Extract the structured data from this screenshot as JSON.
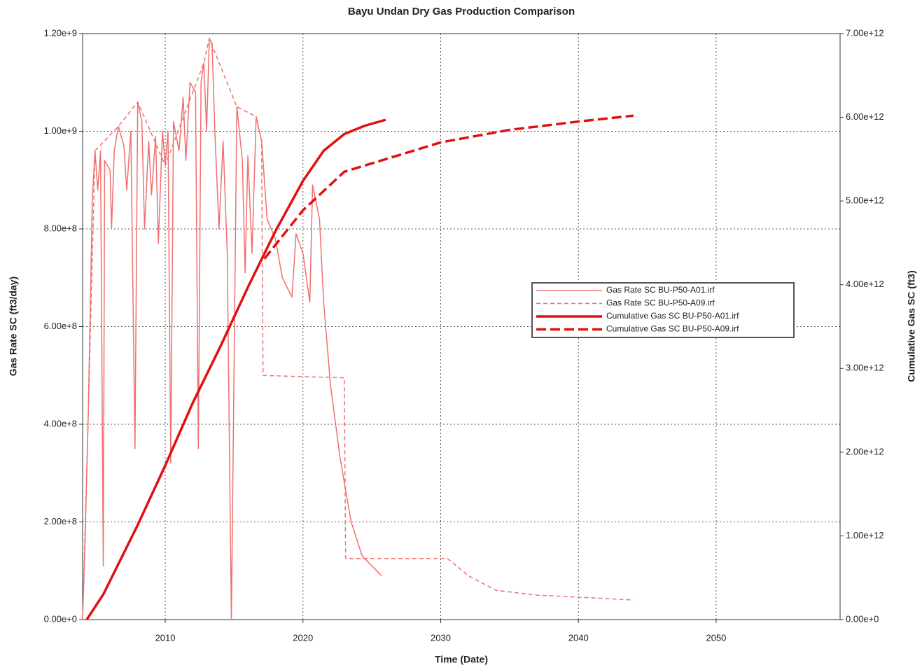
{
  "chart_data": {
    "type": "line",
    "title": "Bayu Undan Dry Gas Production Comparison",
    "x_label": "Time (Date)",
    "y_label": "Gas Rate SC (ft3/day)",
    "y2_label": "Cumulative Gas SC (ft3)",
    "xlim": [
      2004,
      2059
    ],
    "xticks": [
      2010,
      2020,
      2030,
      2040,
      2050
    ],
    "ylim": [
      0,
      1200000000.0
    ],
    "yticks": [
      {
        "value": 0,
        "label": "0.00e+0"
      },
      {
        "value": 200000000.0,
        "label": "2.00e+8"
      },
      {
        "value": 400000000.0,
        "label": "4.00e+8"
      },
      {
        "value": 600000000.0,
        "label": "6.00e+8"
      },
      {
        "value": 800000000.0,
        "label": "8.00e+8"
      },
      {
        "value": 1000000000.0,
        "label": "1.00e+9"
      },
      {
        "value": 1200000000.0,
        "label": "1.20e+9"
      }
    ],
    "y2lim": [
      0,
      7000000000000.0
    ],
    "y2ticks": [
      {
        "value": 0,
        "label": "0.00e+0"
      },
      {
        "value": 1000000000000.0,
        "label": "1.00e+12"
      },
      {
        "value": 2000000000000.0,
        "label": "2.00e+12"
      },
      {
        "value": 3000000000000.0,
        "label": "3.00e+12"
      },
      {
        "value": 4000000000000.0,
        "label": "4.00e+12"
      },
      {
        "value": 5000000000000.0,
        "label": "5.00e+12"
      },
      {
        "value": 6000000000000.0,
        "label": "6.00e+12"
      },
      {
        "value": 7000000000000.0,
        "label": "7.00e+12"
      }
    ],
    "grid": true,
    "legend": "center right",
    "series": [
      {
        "name": "Gas Rate SC BU-P50-A01.irf",
        "color": "#f07070",
        "line_style": "solid",
        "line_width": 1.5,
        "x": [
          2004.0,
          2004.2,
          2004.4,
          2004.6,
          2004.7,
          2004.9,
          2005.1,
          2005.3,
          2005.5,
          2005.6,
          2006.0,
          2006.1,
          2006.3,
          2006.6,
          2007.0,
          2007.2,
          2007.5,
          2007.8,
          2008.0,
          2008.3,
          2008.5,
          2008.8,
          2009.0,
          2009.3,
          2009.5,
          2009.8,
          2010.0,
          2010.2,
          2010.4,
          2010.6,
          2011.0,
          2011.3,
          2011.5,
          2011.8,
          2012.2,
          2012.4,
          2012.6,
          2012.8,
          2013.0,
          2013.2,
          2013.4,
          2013.6,
          2013.9,
          2014.2,
          2014.5,
          2014.8,
          2015.2,
          2015.6,
          2015.8,
          2016.0,
          2016.3,
          2016.6,
          2017.0,
          2017.4,
          2018.0,
          2018.5,
          2019.2,
          2019.5,
          2020.0,
          2020.5,
          2020.7,
          2021.2,
          2021.5,
          2022.0,
          2022.7,
          2023.5,
          2024.3,
          2025.0,
          2025.7
        ],
        "values": [
          0,
          180000000.0,
          410000000.0,
          700000000.0,
          860000000.0,
          960000000.0,
          880000000.0,
          960000000.0,
          110000000.0,
          940000000.0,
          920000000.0,
          800000000.0,
          960000000.0,
          1010000000.0,
          970000000.0,
          880000000.0,
          1000000000.0,
          350000000.0,
          1060000000.0,
          1020000000.0,
          800000000.0,
          980000000.0,
          870000000.0,
          990000000.0,
          770000000.0,
          1000000000.0,
          930000000.0,
          1000000000.0,
          320000000.0,
          1020000000.0,
          960000000.0,
          1070000000.0,
          940000000.0,
          1100000000.0,
          1080000000.0,
          350000000.0,
          1100000000.0,
          1140000000.0,
          1000000000.0,
          1190000000.0,
          1180000000.0,
          1000000000.0,
          800000000.0,
          980000000.0,
          750000000.0,
          0,
          1050000000.0,
          940000000.0,
          710000000.0,
          950000000.0,
          750000000.0,
          1030000000.0,
          980000000.0,
          820000000.0,
          780000000.0,
          700000000.0,
          660000000.0,
          790000000.0,
          750000000.0,
          650000000.0,
          890000000.0,
          820000000.0,
          650000000.0,
          480000000.0,
          330000000.0,
          200000000.0,
          130000000.0,
          110000000.0,
          90000000.0
        ]
      },
      {
        "name": "Gas Rate SC BU-P50-A09.irf",
        "color": "#f07070",
        "line_style": "dashed",
        "line_width": 1.5,
        "x": [
          2004.0,
          2004.4,
          2004.9,
          2006.6,
          2008.0,
          2010.0,
          2012.8,
          2013.2,
          2015.2,
          2016.6,
          2017.0,
          2017.1,
          2023.0,
          2023.1,
          2030.5,
          2032.0,
          2034.0,
          2037.0,
          2040.0,
          2044.0
        ],
        "values": [
          0,
          410000000.0,
          960000000.0,
          1010000000.0,
          1060000000.0,
          930000000.0,
          1140000000.0,
          1190000000.0,
          1050000000.0,
          1030000000.0,
          980000000.0,
          500000000.0,
          495000000.0,
          125000000.0,
          125000000.0,
          90000000.0,
          60000000.0,
          50000000.0,
          46000000.0,
          40000000.0
        ]
      },
      {
        "name": "Cumulative Gas SC BU-P50-A01.irf",
        "color": "#e01010",
        "line_style": "solid",
        "line_width": 3.5,
        "axis": "y2",
        "x": [
          2004.3,
          2005.5,
          2008.0,
          2010.0,
          2012.0,
          2014.0,
          2016.0,
          2018.0,
          2020.0,
          2021.5,
          2023.0,
          2024.5,
          2026.0
        ],
        "values": [
          0,
          300000000000.0,
          1130000000000.0,
          1840000000000.0,
          2590000000000.0,
          3260000000000.0,
          3970000000000.0,
          4640000000000.0,
          5240000000000.0,
          5600000000000.0,
          5800000000000.0,
          5900000000000.0,
          5970000000000.0
        ]
      },
      {
        "name": "Cumulative Gas SC BU-P50-A09.irf",
        "color": "#e01010",
        "line_style": "dashed",
        "line_width": 3.5,
        "axis": "y2",
        "x": [
          2017.2,
          2020.0,
          2023.0,
          2027.0,
          2030.0,
          2035.0,
          2040.0,
          2044.0
        ],
        "values": [
          4310000000000.0,
          4890000000000.0,
          5350000000000.0,
          5550000000000.0,
          5700000000000.0,
          5850000000000.0,
          5950000000000.0,
          6020000000000.0
        ]
      }
    ]
  }
}
